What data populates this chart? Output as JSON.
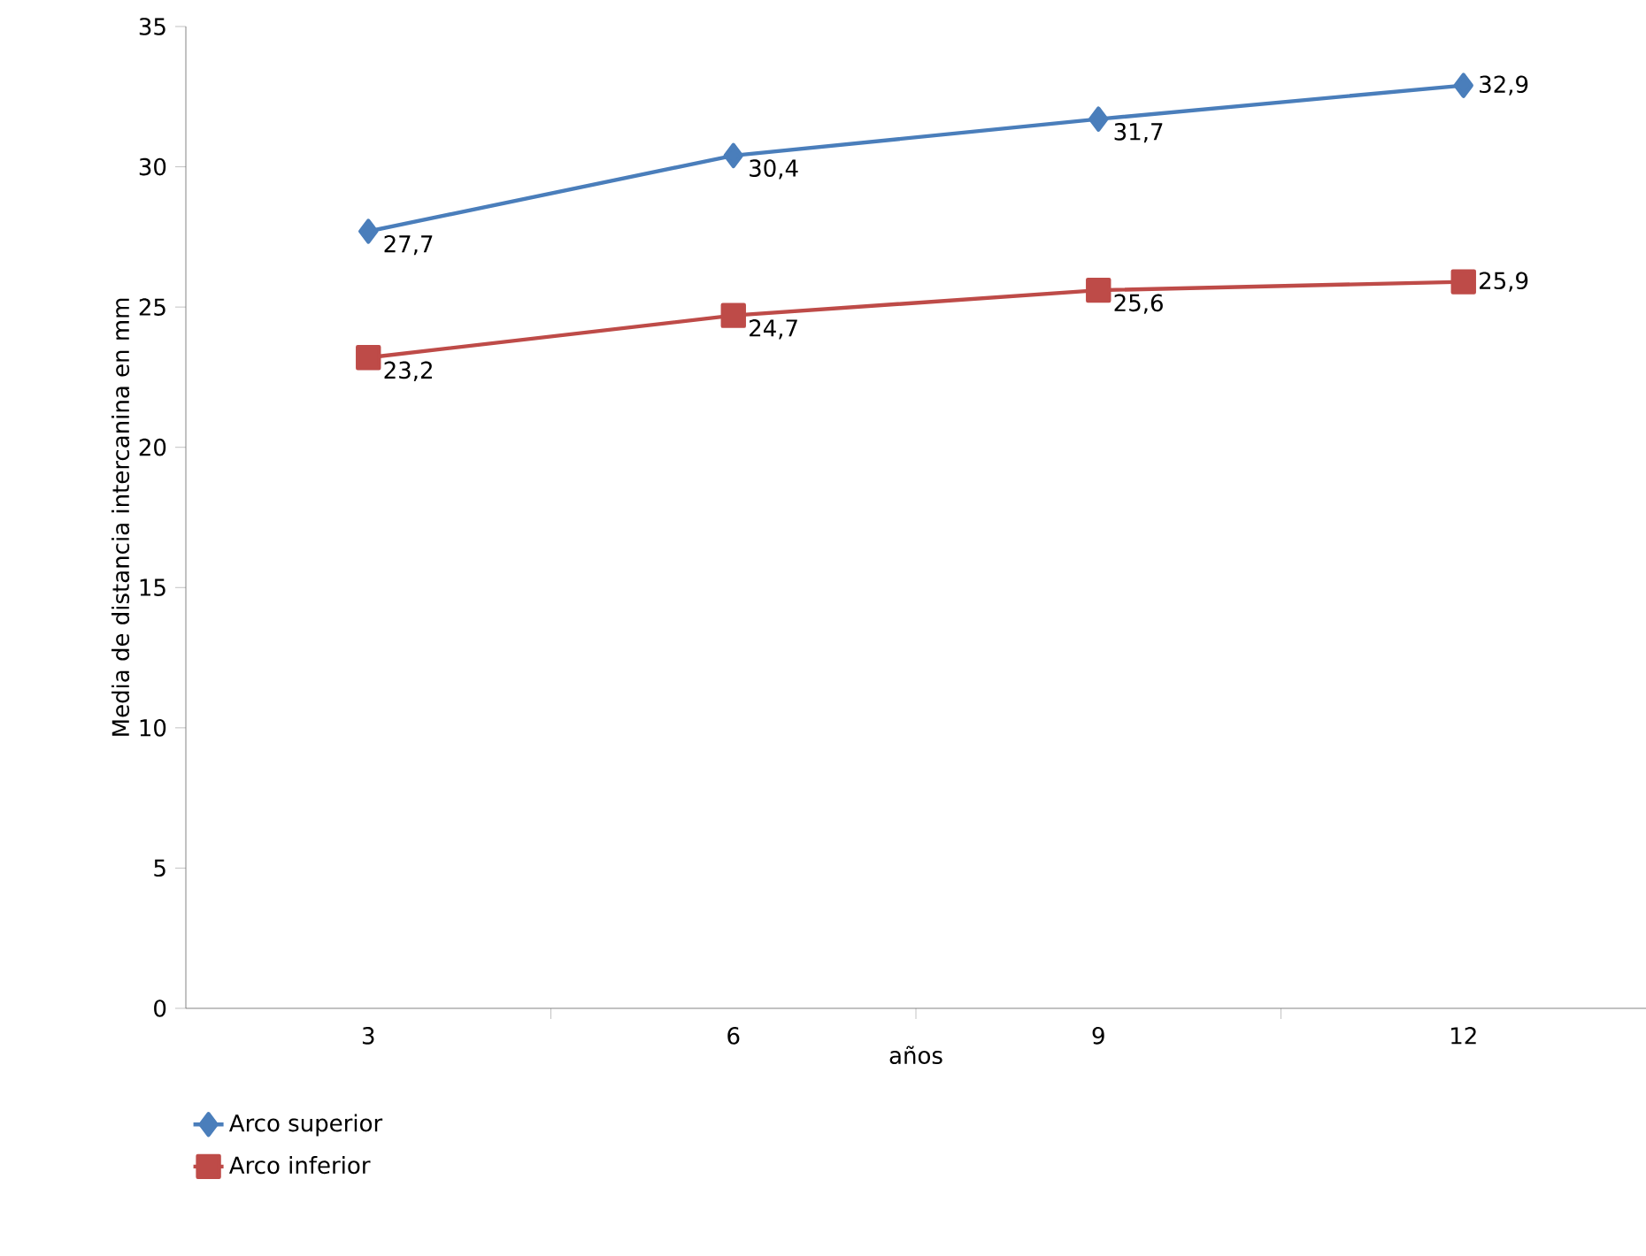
{
  "chart_data": {
    "type": "line",
    "xlabel": "años",
    "ylabel": "Media de distancia intercanina en mm",
    "categories": [
      "3",
      "6",
      "9",
      "12"
    ],
    "ylim": [
      0,
      35
    ],
    "yticks": [
      0,
      5,
      10,
      15,
      20,
      25,
      30,
      35
    ],
    "legend": "bottom",
    "grid": false,
    "series": [
      {
        "name": "Arco superior",
        "color": "#4a7ebb",
        "marker": "diamond",
        "values": [
          27.7,
          30.4,
          31.7,
          32.9
        ],
        "value_labels": [
          "27,7",
          "30,4",
          "31,7",
          "32,9"
        ]
      },
      {
        "name": "Arco inferior",
        "color": "#be4b48",
        "marker": "square",
        "values": [
          23.2,
          24.7,
          25.6,
          25.9
        ],
        "value_labels": [
          "23,2",
          "24,7",
          "25,6",
          "25,9"
        ]
      }
    ]
  }
}
